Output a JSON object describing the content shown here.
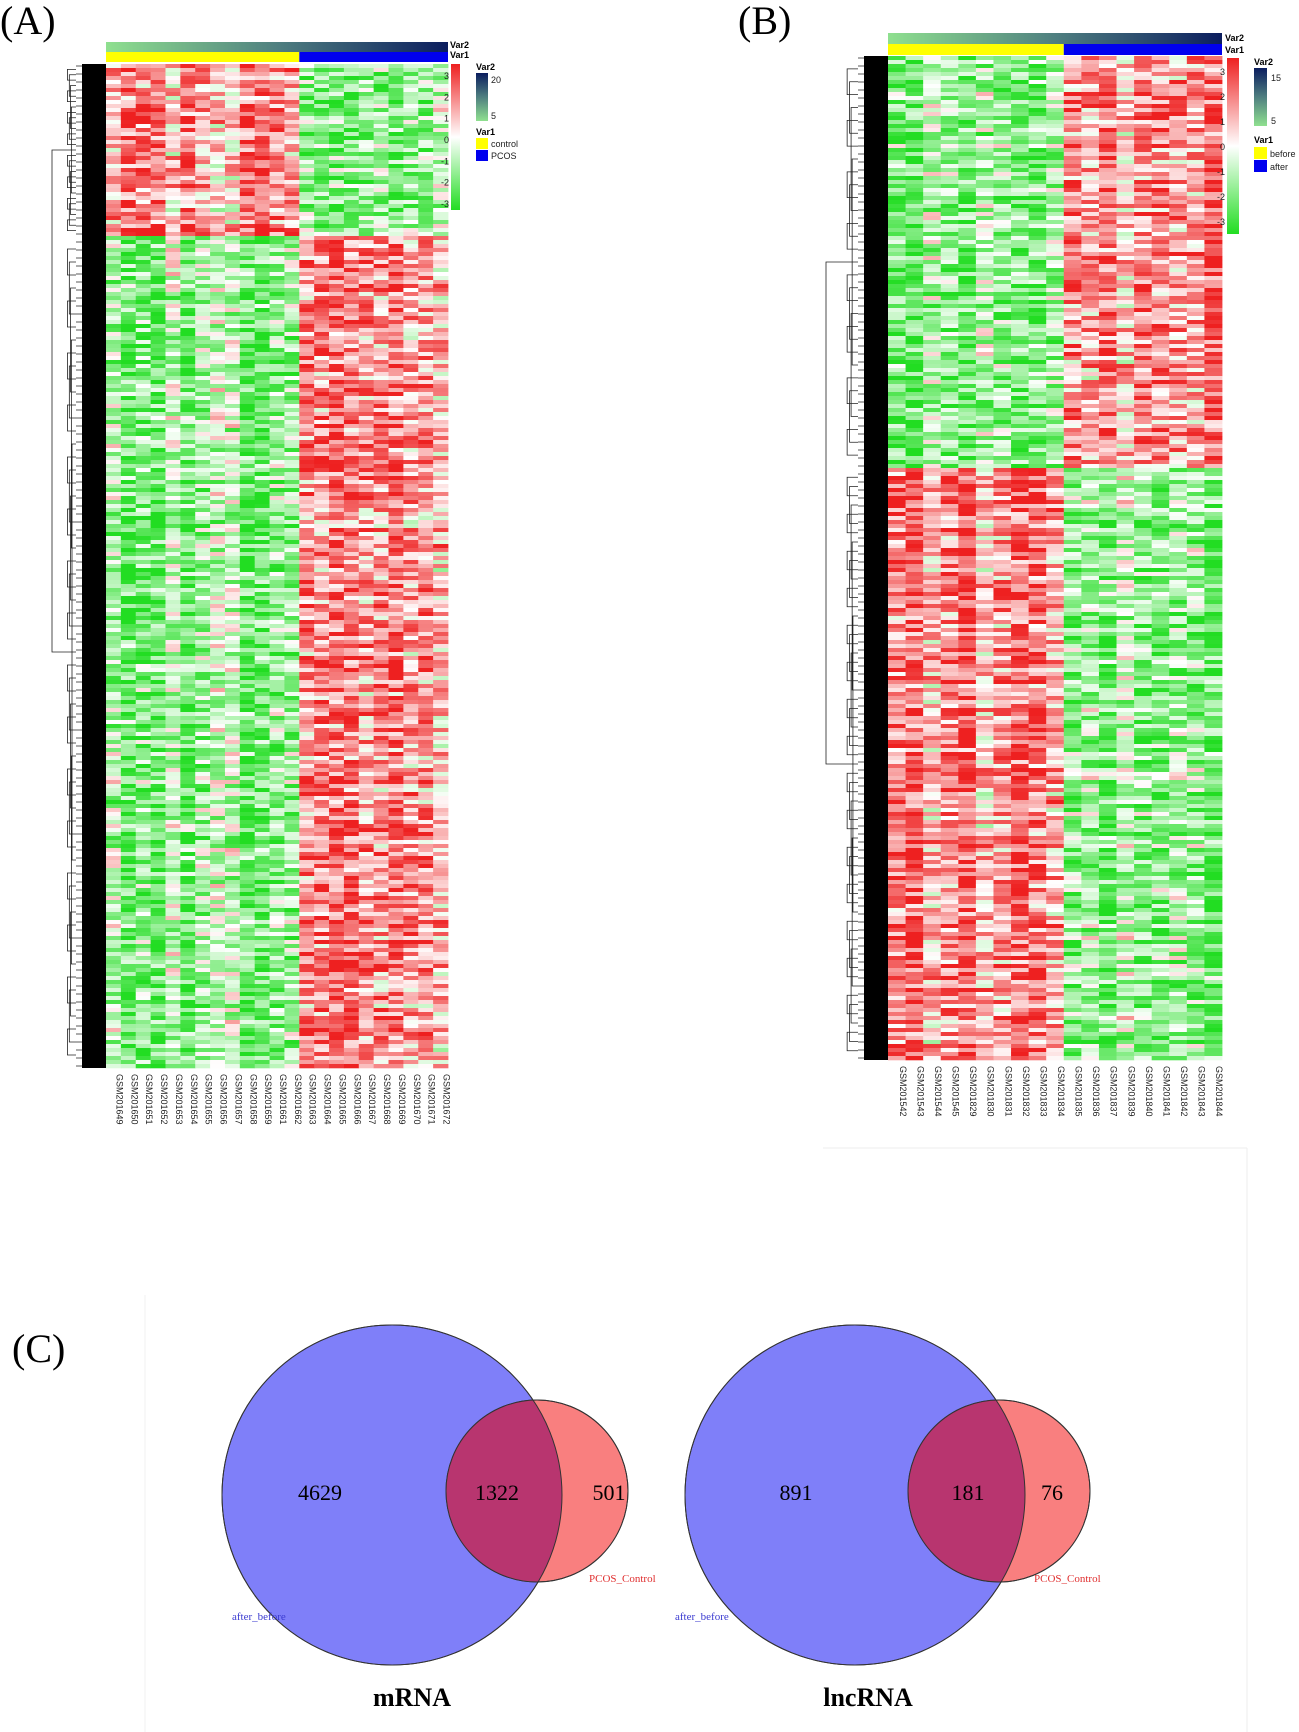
{
  "panels": {
    "a": {
      "label": "(A)",
      "samples": [
        "GSM201649",
        "GSM201650",
        "GSM201651",
        "GSM201652",
        "GSM201653",
        "GSM201654",
        "GSM201655",
        "GSM201656",
        "GSM201657",
        "GSM201658",
        "GSM201659",
        "GSM201661",
        "GSM201662",
        "GSM201663",
        "GSM201664",
        "GSM201665",
        "GSM201666",
        "GSM201667",
        "GSM201668",
        "GSM201669",
        "GSM201670",
        "GSM201671",
        "GSM201672"
      ],
      "groups": [
        {
          "name": "control",
          "count": 13,
          "color": "#ffff00"
        },
        {
          "name": "PCOS",
          "count": 10,
          "color": "#0000ee"
        }
      ],
      "var2_ticks": [
        "20",
        "5"
      ],
      "scale_ticks": [
        "3",
        "2",
        "1",
        "0",
        "-1",
        "-2",
        "-3"
      ],
      "top_fraction": 0.17
    },
    "b": {
      "label": "(B)",
      "samples": [
        "GSM201542",
        "GSM201543",
        "GSM201544",
        "GSM201545",
        "GSM201829",
        "GSM201830",
        "GSM201831",
        "GSM201832",
        "GSM201833",
        "GSM201834",
        "GSM201835",
        "GSM201836",
        "GSM201837",
        "GSM201839",
        "GSM201840",
        "GSM201841",
        "GSM201842",
        "GSM201843",
        "GSM201844"
      ],
      "groups": [
        {
          "name": "before",
          "count": 10,
          "color": "#ffff00"
        },
        {
          "name": "after",
          "count": 9,
          "color": "#0000ee"
        }
      ],
      "var2_ticks": [
        "15",
        "5"
      ],
      "scale_ticks": [
        "3",
        "2",
        "1",
        "0",
        "-1",
        "-2",
        "-3"
      ],
      "top_fraction": 0.41
    },
    "c": {
      "label": "(C)"
    }
  },
  "legend": {
    "var1_title": "Var1",
    "var2_title": "Var2"
  },
  "venn": [
    {
      "title": "mRNA",
      "set_a": "after_before",
      "set_b": "PCOS_Control",
      "only_a": "4629",
      "both": "1322",
      "only_b": "501"
    },
    {
      "title": "lncRNA",
      "set_a": "after_before",
      "set_b": "PCOS_Control",
      "only_a": "891",
      "both": "181",
      "only_b": "76"
    }
  ],
  "colors": {
    "high": "#ee2020",
    "low": "#22dd22",
    "venn_a": "#7f7ff9",
    "venn_b": "#f97f7f",
    "venn_overlap": "#b8356f"
  }
}
